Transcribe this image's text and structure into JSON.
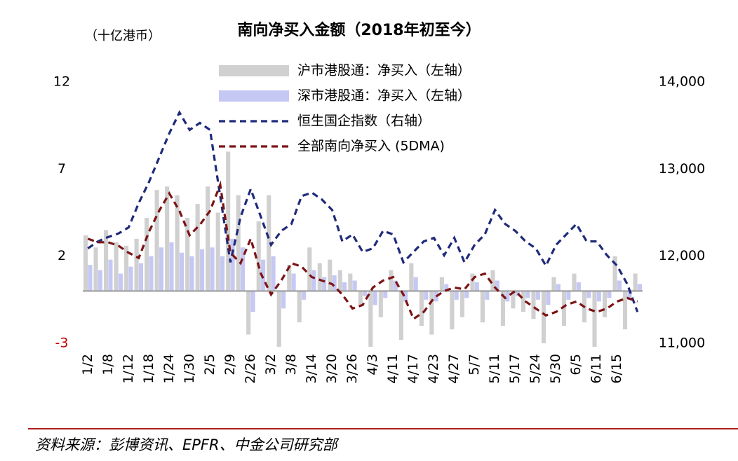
{
  "chart_data": {
    "type": "bar-line",
    "title": "南向净买入金额（2018年初至今）",
    "y_axis_label": "（十亿港币）",
    "source": "资料来源：彭博资讯、EPFR、中金公司研究部",
    "categories": [
      "1/2",
      null,
      "1/8",
      null,
      "1/12",
      null,
      "1/18",
      null,
      "1/24",
      null,
      "1/30",
      null,
      "2/5",
      null,
      "2/9",
      null,
      "2/26",
      null,
      "3/2",
      null,
      "3/8",
      null,
      "3/14",
      null,
      "3/20",
      null,
      "3/26",
      null,
      "4/3",
      null,
      "4/11",
      null,
      "4/17",
      null,
      "4/23",
      null,
      "4/27",
      null,
      "5/7",
      null,
      "5/11",
      null,
      "5/17",
      null,
      "5/24",
      null,
      "5/30",
      null,
      "6/5",
      null,
      "6/11",
      null,
      "6/15",
      null,
      null
    ],
    "ylim": [
      -3,
      12
    ],
    "yticks": [
      -3,
      2,
      7,
      12
    ],
    "negative_tick_color": "#c00000",
    "y2lim": [
      11000,
      14000
    ],
    "y2ticks": [
      {
        "value": 11000,
        "label": "11,000"
      },
      {
        "value": 12000,
        "label": "12,000"
      },
      {
        "value": 13000,
        "label": "13,000"
      },
      {
        "value": 14000,
        "label": "14,000"
      }
    ],
    "series": [
      {
        "name": "沪市港股通：净买入（左轴）",
        "kind": "bar",
        "color": "#d0d0d0",
        "values": [
          3.2,
          2.5,
          3.5,
          2.8,
          2.6,
          3.0,
          4.2,
          5.8,
          6.0,
          5.5,
          4.2,
          5.0,
          6.0,
          4.5,
          8.0,
          5.5,
          -2.5,
          4.0,
          5.5,
          -3.2,
          1.5,
          -1.8,
          2.5,
          1.6,
          1.8,
          1.2,
          1.0,
          -0.8,
          -3.2,
          -1.5,
          1.2,
          -2.8,
          1.6,
          -2.0,
          -2.5,
          0.8,
          -2.2,
          -1.5,
          1.0,
          -1.8,
          1.2,
          -2.0,
          -1.0,
          -1.2,
          -1.6,
          -3.0,
          0.8,
          -2.0,
          1.0,
          -1.8,
          -3.2,
          -1.5,
          2.0,
          -2.2,
          1.0
        ]
      },
      {
        "name": "深市港股通：净买入（左轴）",
        "kind": "bar",
        "color": "#c6c8f4",
        "values": [
          1.5,
          1.2,
          1.8,
          1.0,
          1.4,
          1.6,
          2.0,
          2.5,
          2.8,
          2.2,
          2.0,
          2.4,
          2.5,
          2.0,
          3.0,
          2.5,
          -1.2,
          1.8,
          2.0,
          -1.0,
          1.0,
          -0.5,
          1.2,
          0.8,
          0.9,
          0.5,
          0.6,
          -0.3,
          -0.8,
          -0.4,
          0.6,
          -0.6,
          0.8,
          -0.5,
          -0.6,
          0.4,
          -0.5,
          -0.4,
          0.5,
          -0.5,
          0.6,
          -0.6,
          -0.3,
          -0.4,
          -0.5,
          -0.8,
          0.4,
          -0.5,
          0.5,
          -0.4,
          -0.6,
          -0.4,
          0.6,
          -0.5,
          0.4
        ]
      },
      {
        "name": "恒生国企指数（右轴）",
        "kind": "line",
        "axis": "y2",
        "color": "#1f2a7a",
        "values": [
          12090,
          12170,
          12220,
          12260,
          12330,
          12610,
          12850,
          13130,
          13410,
          13650,
          13450,
          13530,
          13450,
          12690,
          11930,
          12450,
          12770,
          12450,
          12130,
          12290,
          12370,
          12690,
          12730,
          12650,
          12530,
          12170,
          12250,
          12050,
          12090,
          12290,
          12250,
          11930,
          12050,
          12170,
          12210,
          12010,
          12210,
          11930,
          12130,
          12250,
          12530,
          12370,
          12290,
          12170,
          12090,
          11890,
          12130,
          12250,
          12370,
          12170,
          12170,
          12010,
          11890,
          11680,
          11360
        ]
      },
      {
        "name": "全部南向净买入 (5DMA)",
        "kind": "line",
        "color": "#7b1416",
        "values": [
          3.0,
          2.8,
          2.8,
          2.6,
          2.2,
          1.9,
          3.4,
          4.6,
          5.6,
          4.6,
          3.2,
          3.8,
          4.6,
          6.1,
          2.2,
          1.6,
          3.0,
          1.0,
          -0.2,
          0.6,
          1.6,
          1.4,
          0.8,
          0.6,
          0.4,
          -0.2,
          -1.0,
          -0.8,
          0.2,
          0.6,
          0.8,
          -0.2,
          -1.6,
          -1.2,
          -0.4,
          0.0,
          0.2,
          0.1,
          0.8,
          1.0,
          0.2,
          -0.4,
          0.0,
          -0.6,
          -1.0,
          -1.4,
          -1.2,
          -0.8,
          -0.6,
          -1.0,
          -1.2,
          -1.0,
          -0.6,
          -0.4,
          -0.6
        ]
      }
    ]
  }
}
